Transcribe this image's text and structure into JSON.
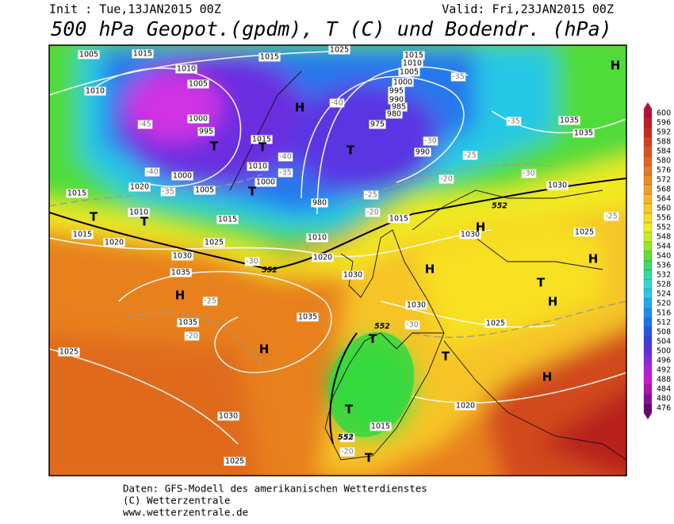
{
  "header": {
    "init": "Init : Tue,13JAN2015 00Z",
    "valid": "Valid: Fri,23JAN2015 00Z",
    "title": "500 hPa Geopot.(gpdm), T (C) und Bodendr. (hPa)"
  },
  "footer": {
    "source": "Daten: GFS-Modell des amerikanischen Wetterdienstes",
    "copyright": "(C) Wetterzentrale",
    "url": "www.wetterzentrale.de"
  },
  "colorbar": {
    "ticks": [
      600,
      596,
      592,
      588,
      584,
      580,
      576,
      572,
      568,
      564,
      560,
      556,
      552,
      548,
      544,
      540,
      536,
      532,
      528,
      524,
      520,
      516,
      512,
      508,
      504,
      500,
      496,
      492,
      488,
      484,
      480,
      476
    ],
    "colors": [
      "#b0103a",
      "#c01a22",
      "#cc2a1e",
      "#d63e1e",
      "#dc521e",
      "#e2661e",
      "#e87a20",
      "#ee8e22",
      "#f2a224",
      "#f6b626",
      "#f8ca26",
      "#f8dc24",
      "#f0ee20",
      "#c8ee22",
      "#96e82a",
      "#5ee036",
      "#38dc6a",
      "#30dca0",
      "#30d8d0",
      "#28c4ee",
      "#20a8f0",
      "#208cf0",
      "#2070ec",
      "#2a54e6",
      "#3c3ce0",
      "#6030dc",
      "#8a28dc",
      "#b020dc",
      "#c818d0",
      "#b010b4",
      "#8a0c96",
      "#640870"
    ]
  },
  "isobar_labels": [
    "1005",
    "1015",
    "1015",
    "1025",
    "1015",
    "1010",
    "1005",
    "1000",
    "995",
    "990",
    "985",
    "980",
    "975",
    "1010",
    "1010",
    "1005",
    "1000",
    "995",
    "1015",
    "1010",
    "1000",
    "1000",
    "1005",
    "1020",
    "1015",
    "1010",
    "1015",
    "1020",
    "1015",
    "1025",
    "1030",
    "1035",
    "1035",
    "1035",
    "1025",
    "1030",
    "1025",
    "1020",
    "1030",
    "980",
    "1010",
    "1015",
    "990",
    "1030",
    "1030",
    "1035",
    "1035",
    "1025",
    "1030",
    "1025",
    "1020",
    "1015"
  ],
  "temperature_labels": [
    "-45",
    "-40",
    "-35",
    "-40",
    "-40",
    "-35",
    "-30",
    "-25",
    "-35",
    "-35",
    "-30",
    "-20",
    "-25",
    "-20",
    "-30",
    "-25",
    "-20",
    "-25",
    "-30",
    "-25",
    "-20"
  ],
  "geopotential_labels": [
    "552",
    "552",
    "552",
    "552"
  ],
  "pressure_centers": [
    "H",
    "H",
    "T",
    "T",
    "T",
    "T",
    "T",
    "T",
    "H",
    "H",
    "H",
    "H",
    "H",
    "T",
    "H",
    "T",
    "T",
    "H",
    "T",
    "T"
  ]
}
